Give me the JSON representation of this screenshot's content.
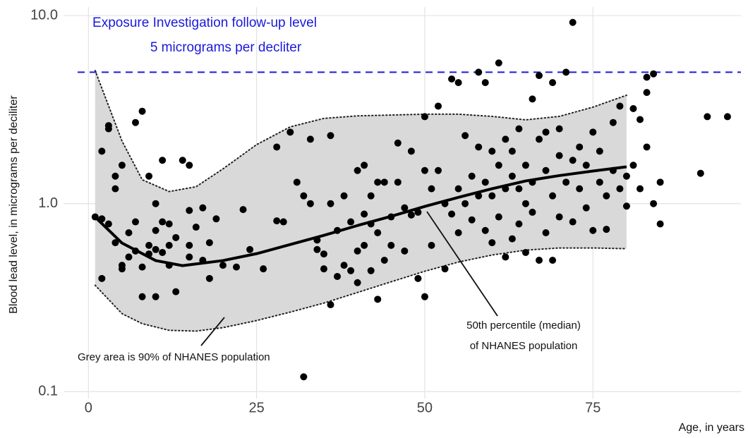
{
  "chart_data": {
    "type": "scatter",
    "x_label": "Age, in years",
    "y_label": "Blood lead level, in micrograms per deciliter",
    "xlim": [
      -3.7,
      97
    ],
    "ylim": [
      0.092,
      11.1
    ],
    "log_y": true,
    "grid": true,
    "xticks": [
      0,
      25,
      50,
      75
    ],
    "yticks": [
      0.1,
      {
        "value": 1,
        "label": "1.0"
      },
      {
        "value": 10,
        "label": "10.0"
      }
    ],
    "series": [
      {
        "color": "#000000",
        "x": [
          1,
          2,
          2,
          2,
          3,
          3,
          3,
          4,
          4,
          4,
          5,
          5,
          5,
          6,
          6,
          7,
          7,
          7,
          8,
          8,
          8,
          9,
          9,
          9,
          10,
          10,
          10,
          10,
          11,
          11,
          11,
          12,
          12,
          12,
          13,
          13,
          14,
          15,
          15,
          15,
          15,
          16,
          17,
          17,
          18,
          18,
          19,
          20,
          22,
          23,
          24,
          26,
          28,
          28,
          29,
          30,
          31,
          32,
          32,
          33,
          33,
          34,
          34,
          35,
          35,
          36,
          36,
          36,
          37,
          37,
          38,
          38,
          39,
          39,
          40,
          40,
          40,
          41,
          41,
          41,
          42,
          42,
          42,
          43,
          43,
          43,
          44,
          44,
          45,
          45,
          46,
          46,
          47,
          47,
          48,
          48,
          49,
          49,
          50,
          50,
          50,
          51,
          51,
          52,
          52,
          53,
          53,
          54,
          54,
          55,
          55,
          55,
          56,
          56,
          57,
          57,
          58,
          58,
          58,
          59,
          59,
          59,
          60,
          60,
          60,
          61,
          61,
          61,
          62,
          62,
          62,
          63,
          63,
          63,
          64,
          64,
          64,
          65,
          65,
          65,
          66,
          66,
          66,
          67,
          67,
          67,
          68,
          68,
          68,
          69,
          69,
          69,
          70,
          70,
          70,
          71,
          71,
          72,
          72,
          72,
          73,
          73,
          74,
          74,
          75,
          75,
          76,
          76,
          77,
          77,
          78,
          78,
          79,
          79,
          80,
          80,
          81,
          81,
          82,
          82,
          83,
          83,
          83,
          84,
          84,
          85,
          85,
          91,
          92,
          95
        ],
        "values": [
          0.85,
          0.83,
          0.4,
          1.9,
          0.78,
          2.5,
          2.6,
          0.62,
          1.4,
          1.2,
          1.6,
          0.47,
          0.45,
          0.52,
          0.7,
          2.7,
          0.8,
          0.56,
          3.1,
          0.32,
          0.46,
          1.4,
          0.6,
          0.54,
          1.0,
          0.72,
          0.32,
          0.57,
          1.7,
          0.55,
          0.8,
          0.47,
          0.78,
          0.6,
          0.66,
          0.34,
          1.7,
          1.6,
          0.92,
          0.52,
          0.6,
          0.75,
          0.95,
          0.5,
          0.62,
          0.4,
          0.83,
          0.47,
          0.46,
          0.93,
          0.57,
          0.45,
          0.81,
          2.0,
          0.8,
          2.4,
          1.3,
          1.1,
          0.12,
          2.2,
          1.0,
          0.64,
          0.57,
          0.45,
          0.54,
          1.0,
          0.29,
          2.3,
          0.72,
          0.41,
          1.1,
          0.47,
          0.44,
          0.8,
          1.5,
          0.56,
          0.38,
          1.6,
          0.6,
          0.88,
          0.78,
          1.1,
          0.44,
          0.31,
          1.3,
          0.7,
          0.5,
          1.3,
          0.85,
          0.6,
          1.3,
          2.1,
          0.95,
          0.56,
          0.87,
          1.9,
          0.9,
          0.4,
          0.32,
          1.5,
          2.9,
          0.6,
          1.2,
          1.5,
          3.3,
          0.45,
          1.0,
          4.6,
          0.88,
          4.4,
          1.2,
          0.7,
          1.0,
          2.3,
          0.82,
          1.4,
          5.0,
          1.1,
          2.0,
          0.72,
          1.3,
          4.4,
          1.9,
          0.62,
          1.1,
          5.6,
          0.85,
          1.6,
          0.52,
          1.2,
          2.2,
          0.65,
          1.4,
          1.9,
          0.78,
          1.2,
          2.5,
          0.55,
          1.0,
          1.6,
          3.6,
          0.9,
          1.3,
          4.8,
          0.5,
          2.2,
          0.7,
          1.5,
          2.4,
          4.4,
          0.5,
          1.1,
          1.8,
          0.85,
          2.5,
          5.0,
          1.3,
          9.2,
          1.7,
          0.8,
          1.2,
          2.0,
          0.95,
          1.6,
          2.4,
          0.72,
          1.3,
          1.9,
          1.1,
          0.73,
          1.5,
          2.7,
          3.3,
          1.2,
          0.97,
          1.4,
          3.2,
          1.6,
          2.8,
          1.2,
          3.9,
          4.7,
          2.0,
          4.9,
          1.0,
          0.78,
          1.3,
          1.45,
          2.9,
          2.9
        ]
      }
    ],
    "band": {
      "color": "#d9d9d9",
      "x": [
        1,
        5,
        8,
        12,
        16,
        20,
        25,
        30,
        35,
        40,
        45,
        50,
        55,
        60,
        65,
        70,
        75,
        80
      ],
      "upper": [
        5.1,
        2.15,
        1.34,
        1.16,
        1.23,
        1.53,
        2.06,
        2.56,
        2.84,
        2.93,
        2.96,
        2.99,
        2.99,
        2.91,
        2.79,
        2.91,
        3.26,
        3.77
      ],
      "lower": [
        0.368,
        0.26,
        0.23,
        0.212,
        0.21,
        0.219,
        0.239,
        0.265,
        0.296,
        0.337,
        0.384,
        0.437,
        0.489,
        0.533,
        0.566,
        0.581,
        0.581,
        0.576
      ]
    },
    "median": {
      "color": "#000000",
      "x": [
        1,
        5,
        10,
        14,
        20,
        25,
        30,
        35,
        40,
        45,
        50,
        55,
        60,
        65,
        70,
        75,
        80
      ],
      "values": [
        0.849,
        0.617,
        0.498,
        0.468,
        0.498,
        0.542,
        0.606,
        0.678,
        0.765,
        0.856,
        0.966,
        1.08,
        1.2,
        1.32,
        1.41,
        1.49,
        1.57
      ]
    },
    "hline": {
      "value": 5,
      "color": "#1a1adb"
    },
    "annotations": {
      "hline_title": "Exposure Investigation follow-up level",
      "hline_subtitle": "5 micrograms per decliter",
      "median_line1": "50th percentile (median)",
      "median_line2": "of NHANES population",
      "band_label": "Grey area is 90% of NHANES population"
    }
  }
}
